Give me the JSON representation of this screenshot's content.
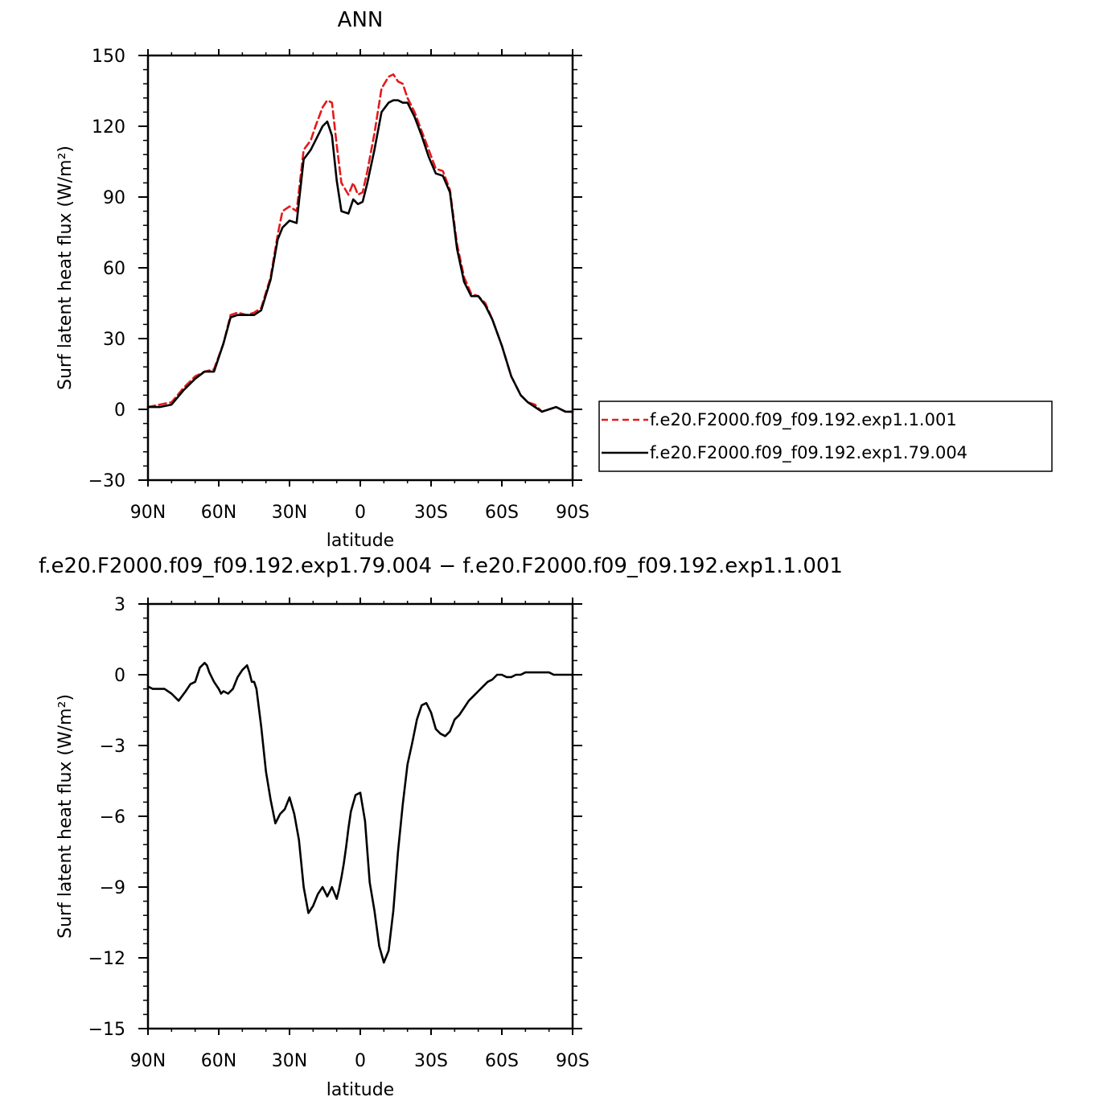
{
  "chart_data": [
    {
      "type": "line",
      "title": "ANN",
      "xlabel": "latitude",
      "ylabel": "Surf latent heat flux (W/m²)",
      "xlim": [
        -90,
        90
      ],
      "ylim": [
        -30,
        150
      ],
      "x_ticks": [
        -90,
        -60,
        -30,
        0,
        30,
        60,
        90
      ],
      "x_tick_labels": [
        "90N",
        "60N",
        "30N",
        "0",
        "30S",
        "60S",
        "90S"
      ],
      "y_ticks": [
        -30,
        0,
        30,
        60,
        90,
        120,
        150
      ],
      "y_tick_labels": [
        "−30",
        "0",
        "30",
        "60",
        "90",
        "120",
        "150"
      ],
      "legend": "right",
      "series": [
        {
          "name": "f.e20.F2000.f09_f09.192.exp1.1.001",
          "color": "#e41a1c",
          "dash": "dashed",
          "x": [
            -90,
            -85,
            -80,
            -75,
            -70,
            -66,
            -62,
            -58,
            -55,
            -52,
            -48,
            -45,
            -42,
            -38,
            -35,
            -33,
            -30,
            -27,
            -24,
            -21,
            -19,
            -16,
            -14,
            -12,
            -10,
            -8,
            -5,
            -3,
            -1,
            1,
            3,
            6,
            9,
            12,
            14,
            16,
            18,
            20,
            23,
            26,
            29,
            32,
            35,
            38,
            41,
            44,
            47,
            50,
            53,
            56,
            60,
            64,
            68,
            71,
            74,
            77,
            80,
            83,
            85,
            87,
            90
          ],
          "y": [
            1,
            2,
            3,
            9,
            14,
            16,
            17,
            28,
            40,
            41,
            40,
            41,
            43,
            56,
            74,
            84,
            86,
            84,
            110,
            114,
            120,
            128,
            131,
            130,
            112,
            96,
            91,
            96,
            91,
            92,
            101,
            117,
            136,
            141,
            142,
            139,
            138,
            132,
            126,
            118,
            110,
            102,
            101,
            93,
            70,
            56,
            49,
            48,
            45,
            38,
            27,
            14,
            6,
            3,
            2,
            -1,
            0,
            1,
            0,
            -1,
            -1
          ]
        },
        {
          "name": "f.e20.F2000.f09_f09.192.exp1.79.004",
          "color": "#000000",
          "dash": "solid",
          "x": [
            -90,
            -85,
            -80,
            -75,
            -70,
            -66,
            -62,
            -58,
            -55,
            -52,
            -48,
            -45,
            -42,
            -38,
            -35,
            -33,
            -30,
            -27,
            -24,
            -21,
            -19,
            -16,
            -14,
            -12,
            -10,
            -8,
            -5,
            -3,
            -1,
            1,
            3,
            6,
            9,
            12,
            14,
            16,
            18,
            20,
            23,
            26,
            29,
            32,
            35,
            38,
            41,
            44,
            47,
            50,
            53,
            56,
            60,
            64,
            68,
            71,
            74,
            77,
            80,
            83,
            85,
            87,
            90
          ],
          "y": [
            1,
            1,
            2,
            8,
            13,
            16,
            16,
            28,
            39,
            40,
            40,
            40,
            42,
            55,
            72,
            77,
            80,
            79,
            106,
            110,
            114,
            120,
            122,
            116,
            97,
            84,
            83,
            89,
            87,
            88,
            96,
            110,
            126,
            130,
            131,
            131,
            130,
            130,
            124,
            116,
            107,
            100,
            99,
            92,
            68,
            54,
            48,
            48,
            44,
            38,
            27,
            14,
            6,
            3,
            1,
            -1,
            0,
            1,
            0,
            -1,
            -1
          ]
        }
      ]
    },
    {
      "type": "line",
      "title": "f.e20.F2000.f09_f09.192.exp1.79.004 − f.e20.F2000.f09_f09.192.exp1.1.001",
      "xlabel": "latitude",
      "ylabel": "Surf latent heat flux (W/m²)",
      "xlim": [
        -90,
        90
      ],
      "ylim": [
        -15,
        3
      ],
      "x_ticks": [
        -90,
        -60,
        -30,
        0,
        30,
        60,
        90
      ],
      "x_tick_labels": [
        "90N",
        "60N",
        "30N",
        "0",
        "30S",
        "60S",
        "90S"
      ],
      "y_ticks": [
        -15,
        -12,
        -9,
        -6,
        -3,
        0,
        3
      ],
      "y_tick_labels": [
        "−15",
        "−12",
        "−9",
        "−6",
        "−3",
        "0",
        "3"
      ],
      "series": [
        {
          "color": "#000000",
          "dash": "solid",
          "x": [
            -90,
            -88,
            -86,
            -83,
            -80,
            -77,
            -74,
            -72,
            -70,
            -68,
            -66,
            -65,
            -64,
            -62,
            -60,
            -59,
            -58,
            -56,
            -54,
            -52,
            -50,
            -48,
            -47,
            -46,
            -45,
            -44,
            -42,
            -40,
            -38,
            -36,
            -34,
            -32,
            -30,
            -28,
            -26,
            -24,
            -22,
            -20,
            -18,
            -16,
            -14,
            -12,
            -10,
            -9,
            -8,
            -7,
            -6,
            -5,
            -4,
            -2,
            0,
            2,
            4,
            6,
            8,
            10,
            12,
            14,
            16,
            18,
            20,
            22,
            24,
            26,
            28,
            30,
            32,
            34,
            36,
            38,
            40,
            42,
            44,
            46,
            48,
            50,
            52,
            54,
            56,
            58,
            60,
            62,
            64,
            66,
            68,
            70,
            72,
            74,
            76,
            78,
            80,
            82,
            84,
            86,
            88,
            90
          ],
          "y": [
            -0.5,
            -0.6,
            -0.6,
            -0.6,
            -0.8,
            -1.1,
            -0.7,
            -0.4,
            -0.3,
            0.3,
            0.5,
            0.4,
            0.1,
            -0.3,
            -0.6,
            -0.8,
            -0.7,
            -0.8,
            -0.6,
            -0.1,
            0.2,
            0.4,
            0.1,
            -0.3,
            -0.3,
            -0.6,
            -2.2,
            -4.1,
            -5.3,
            -6.3,
            -5.9,
            -5.7,
            -5.2,
            -5.9,
            -7.0,
            -9.0,
            -10.1,
            -9.8,
            -9.3,
            -9.0,
            -9.4,
            -9.0,
            -9.5,
            -9.1,
            -8.6,
            -8.0,
            -7.3,
            -6.5,
            -5.8,
            -5.1,
            -5.0,
            -6.2,
            -8.8,
            -10.0,
            -11.5,
            -12.2,
            -11.7,
            -10.0,
            -7.5,
            -5.5,
            -3.8,
            -2.9,
            -1.9,
            -1.3,
            -1.2,
            -1.6,
            -2.3,
            -2.5,
            -2.6,
            -2.4,
            -1.9,
            -1.7,
            -1.4,
            -1.1,
            -0.9,
            -0.7,
            -0.5,
            -0.3,
            -0.2,
            0.0,
            0.0,
            -0.1,
            -0.1,
            0.0,
            0.0,
            0.1,
            0.1,
            0.1,
            0.1,
            0.1,
            0.1,
            0.0,
            0.0,
            0.0,
            0.0,
            0.0
          ]
        }
      ]
    }
  ]
}
